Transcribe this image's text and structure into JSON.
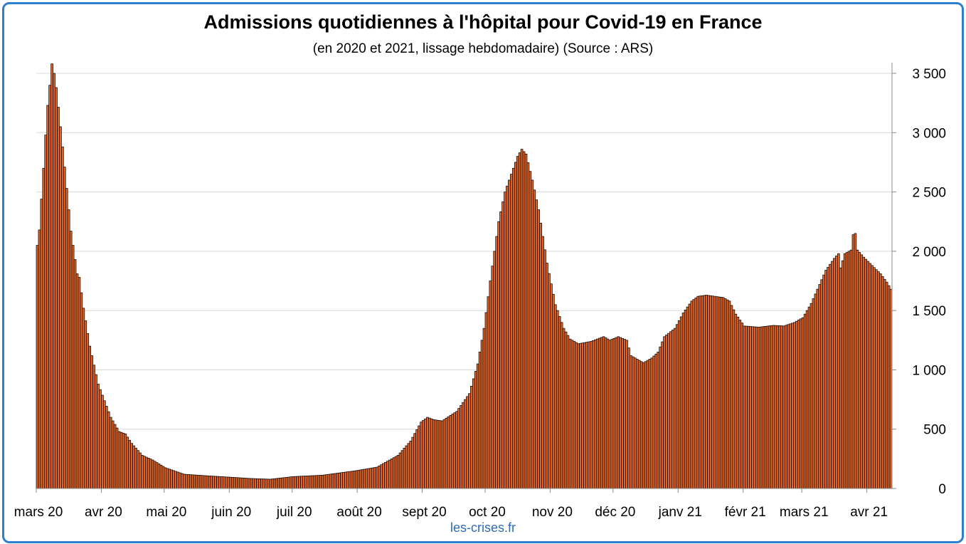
{
  "chart_data": {
    "type": "bar",
    "title": "Admissions quotidiennes à l'hôpital pour Covid-19 en France",
    "subtitle": "(en 2020 et 2021, lissage hebdomadaire) (Source : ARS)",
    "xlabel": "",
    "ylabel": "",
    "ylim": [
      0,
      3500
    ],
    "yticks": [
      0,
      500,
      1000,
      1500,
      2000,
      2500,
      3000,
      3500
    ],
    "ytick_labels": [
      "0",
      "500",
      "1 000",
      "1 500",
      "2 000",
      "2 500",
      "3 000",
      "3 500"
    ],
    "x_start": "2020-03-01",
    "x_end": "2021-04-12",
    "month_ticks": [
      {
        "date": "2020-03-01",
        "label": "mars 20"
      },
      {
        "date": "2020-04-01",
        "label": "avr 20"
      },
      {
        "date": "2020-05-01",
        "label": "mai 20"
      },
      {
        "date": "2020-06-01",
        "label": "juin 20"
      },
      {
        "date": "2020-07-01",
        "label": "juil 20"
      },
      {
        "date": "2020-08-01",
        "label": "août 20"
      },
      {
        "date": "2020-09-01",
        "label": "sept 20"
      },
      {
        "date": "2020-10-01",
        "label": "oct 20"
      },
      {
        "date": "2020-11-01",
        "label": "nov 20"
      },
      {
        "date": "2020-12-01",
        "label": "déc 20"
      },
      {
        "date": "2021-01-01",
        "label": "janv 21"
      },
      {
        "date": "2021-02-01",
        "label": "févr 21"
      },
      {
        "date": "2021-03-01",
        "label": "mars 21"
      },
      {
        "date": "2021-04-01",
        "label": "avr 21"
      }
    ],
    "grid": true,
    "y_axis_side": "right",
    "bar_color": "#e0652a",
    "bar_edge_color": "#000000",
    "series_points": [
      [
        "2020-03-01",
        2050
      ],
      [
        "2020-03-02",
        2180
      ],
      [
        "2020-03-03",
        2440
      ],
      [
        "2020-03-04",
        2700
      ],
      [
        "2020-03-05",
        2980
      ],
      [
        "2020-03-06",
        3230
      ],
      [
        "2020-03-07",
        3400
      ],
      [
        "2020-03-08",
        3580
      ],
      [
        "2020-03-09",
        3500
      ],
      [
        "2020-03-10",
        3380
      ],
      [
        "2020-03-12",
        3050
      ],
      [
        "2020-03-14",
        2710
      ],
      [
        "2020-03-17",
        2170
      ],
      [
        "2020-03-20",
        1810
      ],
      [
        "2020-03-21",
        1780
      ],
      [
        "2020-03-23",
        1520
      ],
      [
        "2020-03-26",
        1200
      ],
      [
        "2020-03-30",
        880
      ],
      [
        "2020-04-05",
        600
      ],
      [
        "2020-04-09",
        480
      ],
      [
        "2020-04-12",
        460
      ],
      [
        "2020-04-15",
        380
      ],
      [
        "2020-04-20",
        280
      ],
      [
        "2020-04-25",
        240
      ],
      [
        "2020-05-01",
        175
      ],
      [
        "2020-05-10",
        120
      ],
      [
        "2020-05-20",
        108
      ],
      [
        "2020-06-01",
        95
      ],
      [
        "2020-06-10",
        85
      ],
      [
        "2020-06-20",
        78
      ],
      [
        "2020-07-01",
        100
      ],
      [
        "2020-07-15",
        112
      ],
      [
        "2020-07-31",
        150
      ],
      [
        "2020-08-10",
        180
      ],
      [
        "2020-08-20",
        280
      ],
      [
        "2020-08-26",
        400
      ],
      [
        "2020-08-31",
        560
      ],
      [
        "2020-09-03",
        600
      ],
      [
        "2020-09-06",
        580
      ],
      [
        "2020-09-10",
        570
      ],
      [
        "2020-09-17",
        650
      ],
      [
        "2020-09-23",
        800
      ],
      [
        "2020-09-27",
        1050
      ],
      [
        "2020-09-30",
        1350
      ],
      [
        "2020-10-03",
        1750
      ],
      [
        "2020-10-07",
        2250
      ],
      [
        "2020-10-10",
        2500
      ],
      [
        "2020-10-13",
        2650
      ],
      [
        "2020-10-16",
        2800
      ],
      [
        "2020-10-18",
        2860
      ],
      [
        "2020-10-20",
        2820
      ],
      [
        "2020-10-23",
        2600
      ],
      [
        "2020-10-26",
        2350
      ],
      [
        "2020-10-30",
        1900
      ],
      [
        "2020-11-03",
        1550
      ],
      [
        "2020-11-07",
        1350
      ],
      [
        "2020-11-10",
        1260
      ],
      [
        "2020-11-14",
        1220
      ],
      [
        "2020-11-20",
        1240
      ],
      [
        "2020-11-26",
        1280
      ],
      [
        "2020-11-29",
        1250
      ],
      [
        "2020-12-03",
        1280
      ],
      [
        "2020-12-07",
        1250
      ],
      [
        "2020-12-09",
        1120
      ],
      [
        "2020-12-13",
        1080
      ],
      [
        "2020-12-15",
        1060
      ],
      [
        "2020-12-19",
        1100
      ],
      [
        "2020-12-22",
        1150
      ],
      [
        "2020-12-25",
        1280
      ],
      [
        "2020-12-30",
        1350
      ],
      [
        "2021-01-03",
        1480
      ],
      [
        "2021-01-07",
        1580
      ],
      [
        "2021-01-10",
        1620
      ],
      [
        "2021-01-14",
        1630
      ],
      [
        "2021-01-18",
        1620
      ],
      [
        "2021-01-22",
        1610
      ],
      [
        "2021-01-25",
        1580
      ],
      [
        "2021-01-28",
        1470
      ],
      [
        "2021-02-01",
        1370
      ],
      [
        "2021-02-08",
        1360
      ],
      [
        "2021-02-15",
        1375
      ],
      [
        "2021-02-20",
        1370
      ],
      [
        "2021-02-25",
        1400
      ],
      [
        "2021-03-01",
        1440
      ],
      [
        "2021-03-05",
        1560
      ],
      [
        "2021-03-08",
        1680
      ],
      [
        "2021-03-12",
        1840
      ],
      [
        "2021-03-16",
        1940
      ],
      [
        "2021-03-18",
        1980
      ],
      [
        "2021-03-19",
        1860
      ],
      [
        "2021-03-21",
        1980
      ],
      [
        "2021-03-24",
        2010
      ],
      [
        "2021-03-25",
        2140
      ],
      [
        "2021-03-26",
        2150
      ],
      [
        "2021-03-27",
        2010
      ],
      [
        "2021-03-30",
        1950
      ],
      [
        "2021-04-03",
        1880
      ],
      [
        "2021-04-07",
        1810
      ],
      [
        "2021-04-10",
        1740
      ],
      [
        "2021-04-12",
        1680
      ]
    ]
  },
  "credit": "les-crises.fr"
}
